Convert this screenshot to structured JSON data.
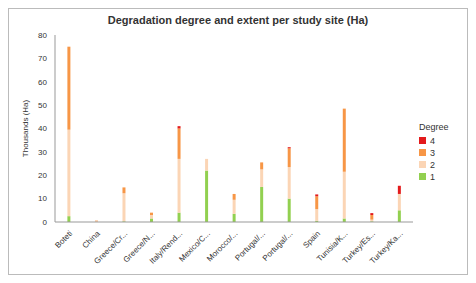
{
  "chart_data": {
    "type": "bar",
    "title": "Degradation degree and extent per study site (Ha)",
    "ylabel": "Thousands (Ha)",
    "legend_title": "Degree",
    "categories": [
      "Boteti",
      "China",
      "Greece/Cr...",
      "Greece/N...",
      "Italy/Rend...",
      "Mexico/C...",
      "Morocco/...",
      "Portugal/...",
      "Portugal/...",
      "Spain",
      "Tunisia/K...",
      "Turkey/Es...",
      "Turkey/Ka..."
    ],
    "series": [
      {
        "name": "1",
        "color": "#92d050",
        "values": [
          2.5,
          0,
          0.3,
          1.5,
          4,
          22,
          3.5,
          15,
          10,
          0.5,
          1.5,
          0.3,
          5
        ]
      },
      {
        "name": "2",
        "color": "#fbd5b5",
        "values": [
          37,
          0.3,
          12,
          1.5,
          23,
          5,
          6,
          7.5,
          13.5,
          5,
          20,
          0.7,
          7
        ]
      },
      {
        "name": "3",
        "color": "#f79646",
        "values": [
          35.5,
          0.3,
          2.5,
          1,
          13,
          0,
          2.5,
          3,
          8,
          5.5,
          27,
          2,
          0
        ]
      },
      {
        "name": "4",
        "color": "#e31a1c",
        "values": [
          0,
          0,
          0,
          0,
          1,
          0,
          0,
          0,
          0.5,
          0.8,
          0,
          0.8,
          3.5
        ]
      }
    ],
    "ylim": [
      0,
      80
    ],
    "yticks": [
      0,
      10,
      20,
      30,
      40,
      50,
      60,
      70,
      80
    ],
    "stacked": true,
    "grid": false,
    "legend": "right"
  }
}
